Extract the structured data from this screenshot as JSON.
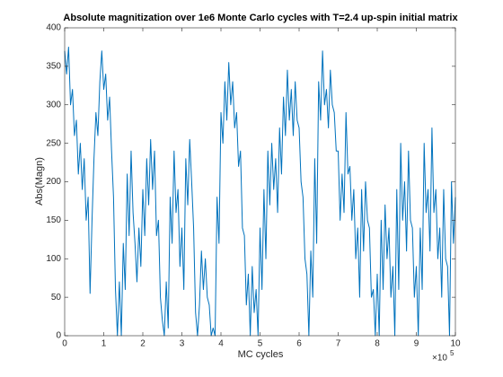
{
  "chart_data": {
    "type": "line",
    "title": "Absolute magnitization over 1e6 Monte Carlo cycles with T=2.4 up-spin initial matrix",
    "x_label": "MC cycles",
    "y_label": "Abs(Magn)",
    "x_exponent_base": "×10",
    "x_exponent": "5",
    "xlim": [
      0,
      10
    ],
    "ylim": [
      0,
      400
    ],
    "xticks": [
      0,
      1,
      2,
      3,
      4,
      5,
      6,
      7,
      8,
      9,
      10
    ],
    "yticks": [
      0,
      50,
      100,
      150,
      200,
      250,
      300,
      350,
      400
    ],
    "grid": false,
    "x": [
      0,
      0.05,
      0.1,
      0.15,
      0.2,
      0.25,
      0.3,
      0.35,
      0.4,
      0.45,
      0.5,
      0.55,
      0.6,
      0.65,
      0.7,
      0.75,
      0.8,
      0.85,
      0.9,
      0.95,
      1,
      1.05,
      1.1,
      1.15,
      1.2,
      1.25,
      1.3,
      1.35,
      1.4,
      1.45,
      1.5,
      1.55,
      1.6,
      1.65,
      1.7,
      1.75,
      1.8,
      1.85,
      1.9,
      1.95,
      2,
      2.05,
      2.1,
      2.15,
      2.2,
      2.25,
      2.3,
      2.35,
      2.4,
      2.45,
      2.5,
      2.55,
      2.6,
      2.65,
      2.7,
      2.75,
      2.8,
      2.85,
      2.9,
      2.95,
      3,
      3.05,
      3.1,
      3.15,
      3.2,
      3.25,
      3.3,
      3.35,
      3.4,
      3.45,
      3.5,
      3.55,
      3.6,
      3.65,
      3.7,
      3.75,
      3.8,
      3.85,
      3.9,
      3.95,
      4,
      4.05,
      4.1,
      4.15,
      4.2,
      4.25,
      4.3,
      4.35,
      4.4,
      4.45,
      4.5,
      4.55,
      4.6,
      4.65,
      4.7,
      4.75,
      4.8,
      4.85,
      4.9,
      4.95,
      5,
      5.05,
      5.1,
      5.15,
      5.2,
      5.25,
      5.3,
      5.35,
      5.4,
      5.45,
      5.5,
      5.55,
      5.6,
      5.65,
      5.7,
      5.75,
      5.8,
      5.85,
      5.9,
      5.95,
      6,
      6.05,
      6.1,
      6.15,
      6.2,
      6.25,
      6.3,
      6.35,
      6.4,
      6.45,
      6.5,
      6.55,
      6.6,
      6.65,
      6.7,
      6.75,
      6.8,
      6.85,
      6.9,
      6.95,
      7,
      7.05,
      7.1,
      7.15,
      7.2,
      7.25,
      7.3,
      7.35,
      7.4,
      7.45,
      7.5,
      7.55,
      7.6,
      7.65,
      7.7,
      7.75,
      7.8,
      7.85,
      7.9,
      7.95,
      8,
      8.05,
      8.1,
      8.15,
      8.2,
      8.25,
      8.3,
      8.35,
      8.4,
      8.45,
      8.5,
      8.55,
      8.6,
      8.65,
      8.7,
      8.75,
      8.8,
      8.85,
      8.9,
      8.95,
      9,
      9.05,
      9.1,
      9.15,
      9.2,
      9.25,
      9.3,
      9.35,
      9.4,
      9.45,
      9.5,
      9.55,
      9.6,
      9.65,
      9.7,
      9.75,
      9.8,
      9.85,
      9.9,
      9.95,
      10
    ],
    "series": [
      {
        "color": "#0072bd",
        "values": [
          370,
          340,
          375,
          300,
          320,
          260,
          280,
          210,
          250,
          190,
          230,
          150,
          180,
          55,
          150,
          230,
          290,
          260,
          330,
          370,
          320,
          340,
          280,
          310,
          240,
          180,
          60,
          0,
          70,
          0,
          120,
          60,
          210,
          130,
          240,
          160,
          120,
          70,
          140,
          90,
          190,
          130,
          230,
          170,
          255,
          190,
          240,
          130,
          150,
          50,
          20,
          0,
          70,
          10,
          180,
          120,
          240,
          160,
          190,
          90,
          140,
          60,
          230,
          170,
          255,
          200,
          140,
          30,
          0,
          40,
          110,
          60,
          100,
          50,
          40,
          0,
          10,
          0,
          180,
          120,
          290,
          250,
          330,
          280,
          355,
          300,
          330,
          270,
          290,
          220,
          240,
          140,
          130,
          40,
          80,
          0,
          90,
          30,
          60,
          0,
          140,
          60,
          190,
          100,
          240,
          170,
          250,
          190,
          230,
          160,
          270,
          210,
          310,
          260,
          345,
          280,
          320,
          260,
          330,
          280,
          270,
          200,
          180,
          100,
          80,
          0,
          110,
          50,
          230,
          120,
          330,
          280,
          370,
          300,
          320,
          270,
          345,
          300,
          290,
          240,
          240,
          150,
          210,
          160,
          290,
          210,
          220,
          150,
          190,
          100,
          140,
          50,
          190,
          110,
          200,
          150,
          140,
          50,
          60,
          0,
          80,
          0,
          150,
          60,
          170,
          100,
          140,
          50,
          90,
          0,
          190,
          60,
          250,
          150,
          200,
          110,
          240,
          150,
          140,
          50,
          90,
          0,
          140,
          60,
          250,
          160,
          190,
          110,
          270,
          160,
          190,
          100,
          140,
          50,
          190,
          100,
          90,
          0,
          200,
          120,
          180
        ]
      }
    ]
  }
}
